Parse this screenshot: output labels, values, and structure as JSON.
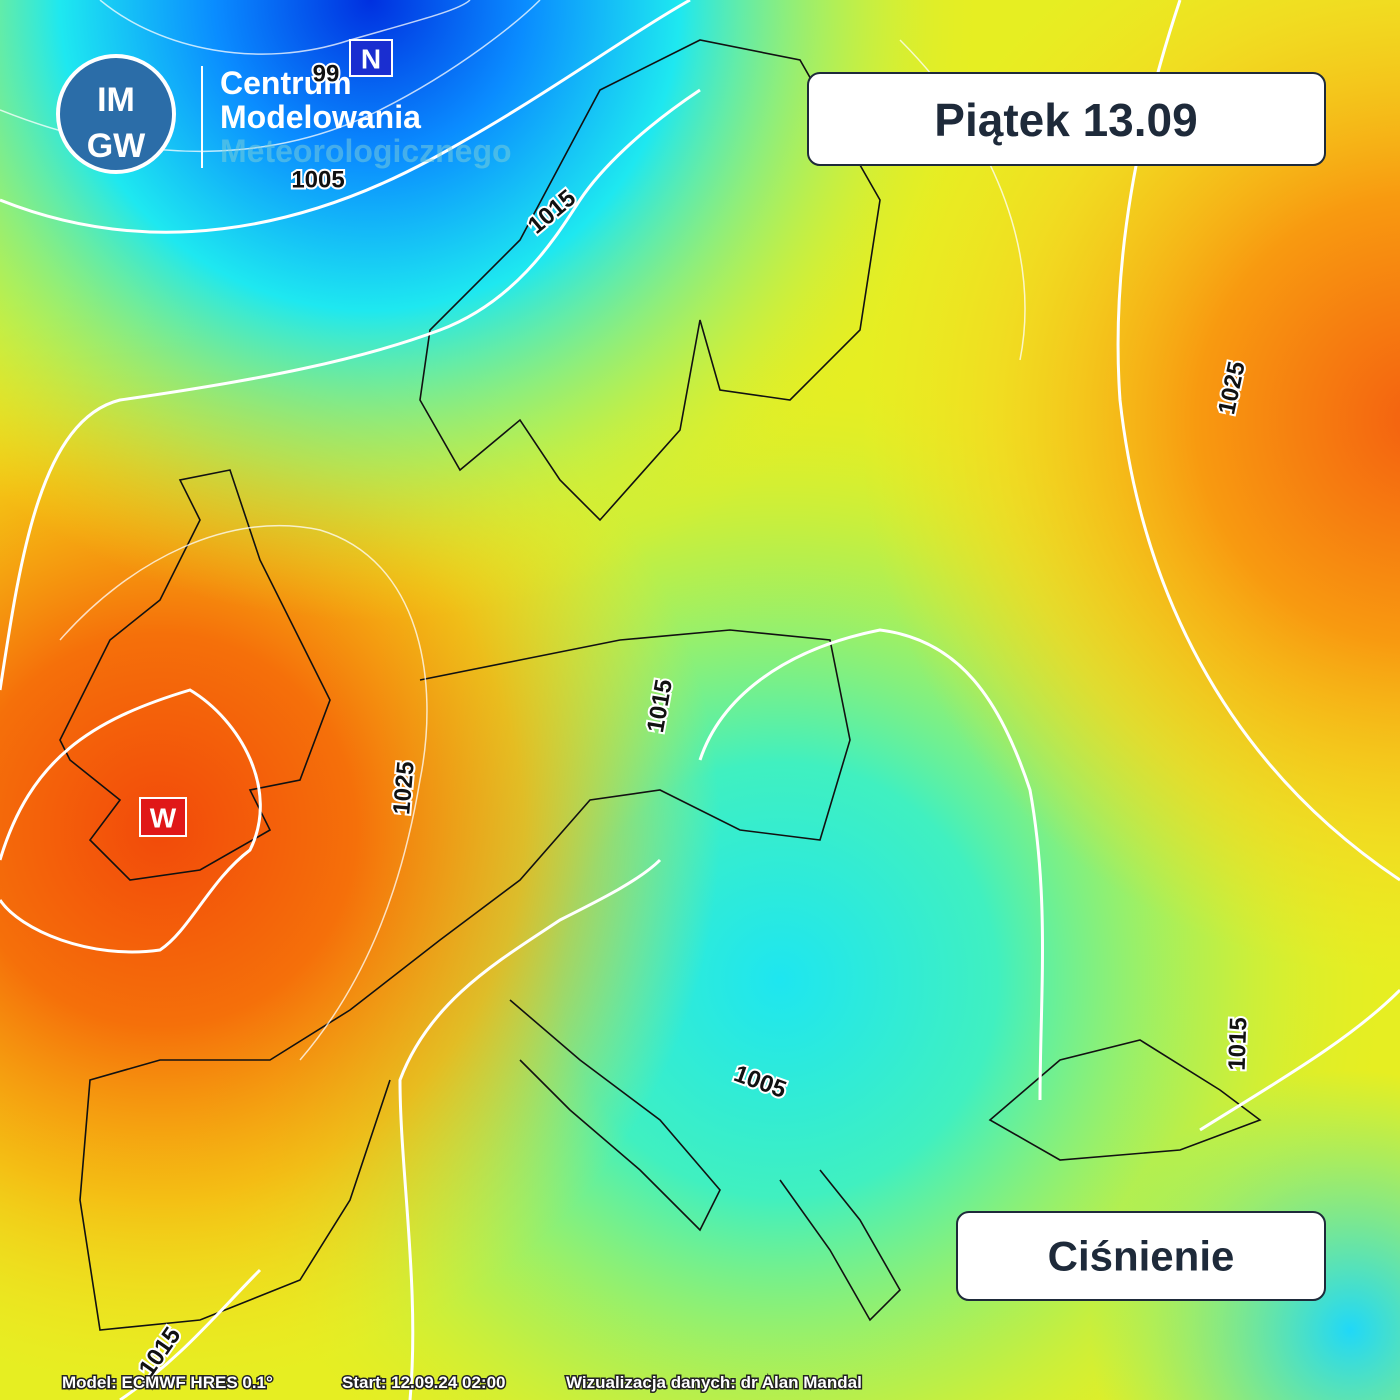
{
  "header": {
    "day": "Piątek 13.09",
    "parameter": "Ciśnienie"
  },
  "logo": {
    "mark": [
      "IM",
      "GW"
    ],
    "lines": [
      "Centrum",
      "Modelowania",
      "Meteorologicznego"
    ]
  },
  "pressure_centers": [
    {
      "label": "N"
    },
    {
      "label": "W"
    }
  ],
  "isobar_labels": [
    {
      "text": "99"
    },
    {
      "text": "1005"
    },
    {
      "text": "1015"
    },
    {
      "text": "1025"
    },
    {
      "text": "1025"
    },
    {
      "text": "1015"
    },
    {
      "text": "1005"
    },
    {
      "text": "1015"
    },
    {
      "text": "1015"
    }
  ],
  "footer": [
    "Model: ECMWF HRES 0.1°",
    "Start: 12.09.24 02:00",
    "Wizualizacja danych: dr Alan Mandal"
  ]
}
